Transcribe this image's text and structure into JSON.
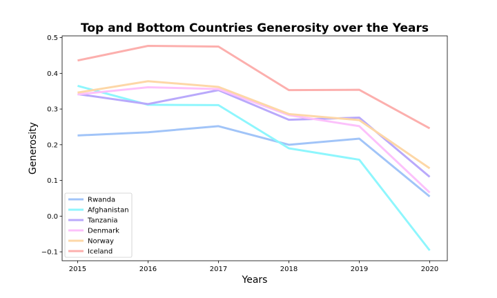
{
  "chart_data": {
    "type": "line",
    "title": "Top and Bottom Countries Generosity over the Years",
    "xlabel": "Years",
    "ylabel": "Generosity",
    "x": [
      2015,
      2016,
      2017,
      2018,
      2019,
      2020
    ],
    "x_tick_labels": [
      "2015",
      "2016",
      "2017",
      "2018",
      "2019",
      "2020"
    ],
    "ylim": [
      -0.125,
      0.505
    ],
    "y_ticks": [
      -0.1,
      0.0,
      0.1,
      0.2,
      0.3,
      0.4,
      0.5
    ],
    "y_tick_labels": [
      "−0.1",
      "0.0",
      "0.1",
      "0.2",
      "0.3",
      "0.4",
      "0.5"
    ],
    "grid": false,
    "legend_position": "lower-left",
    "series": [
      {
        "name": "Rwanda",
        "color": "#a1c4f8",
        "values": [
          0.226,
          0.235,
          0.252,
          0.2,
          0.217,
          0.055
        ]
      },
      {
        "name": "Afghanistan",
        "color": "#8ef6fd",
        "values": [
          0.365,
          0.312,
          0.311,
          0.19,
          0.158,
          -0.096
        ]
      },
      {
        "name": "Tanzania",
        "color": "#b9a9fb",
        "values": [
          0.342,
          0.314,
          0.353,
          0.27,
          0.276,
          0.11
        ]
      },
      {
        "name": "Denmark",
        "color": "#fcc1fb",
        "values": [
          0.341,
          0.361,
          0.356,
          0.283,
          0.252,
          0.066
        ]
      },
      {
        "name": "Norway",
        "color": "#fdd7a7",
        "values": [
          0.346,
          0.378,
          0.362,
          0.286,
          0.269,
          0.134
        ]
      },
      {
        "name": "Iceland",
        "color": "#fcafad",
        "values": [
          0.436,
          0.477,
          0.475,
          0.353,
          0.354,
          0.246
        ]
      }
    ]
  }
}
